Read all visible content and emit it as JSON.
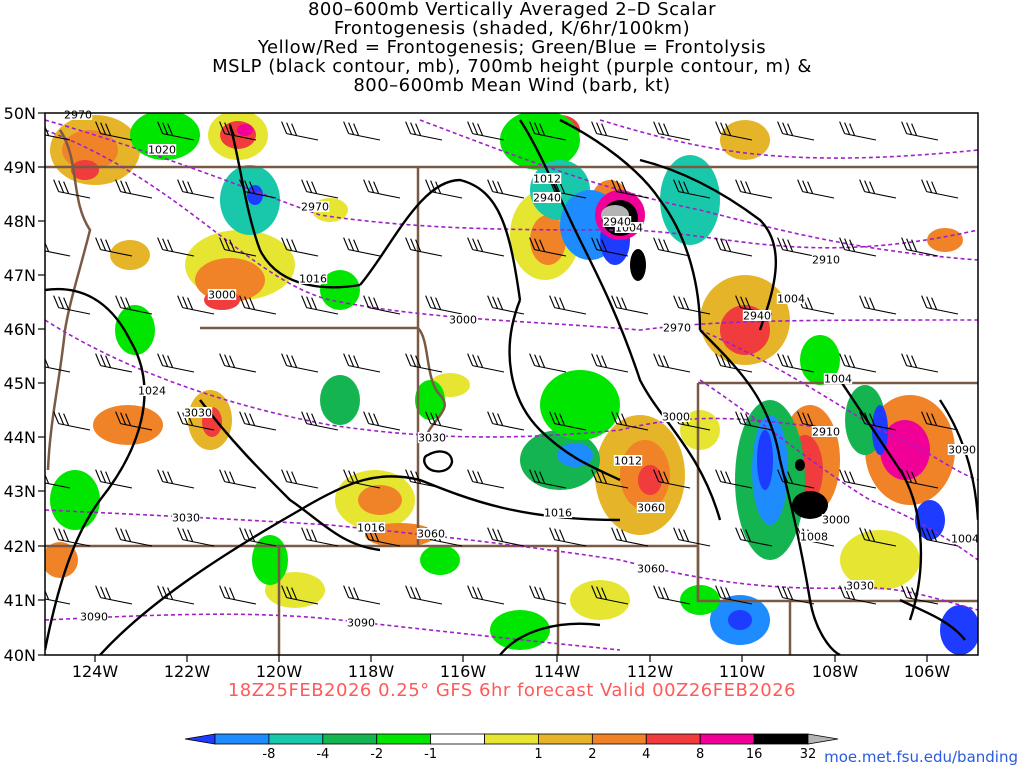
{
  "title": {
    "lines": [
      "800–600mb Vertically Averaged 2–D Scalar",
      "Frontogenesis (shaded, K/6hr/100km)",
      "Yellow/Red = Frontogenesis;  Green/Blue = Frontolysis",
      "MSLP (black contour, mb), 700mb height (purple contour, m) &",
      "800–600mb Mean Wind (barb, kt)"
    ]
  },
  "map": {
    "lat_labels": [
      "50N",
      "49N",
      "48N",
      "47N",
      "46N",
      "45N",
      "44N",
      "43N",
      "42N",
      "41N",
      "40N"
    ],
    "lon_labels": [
      "124W",
      "122W",
      "120W",
      "118W",
      "116W",
      "114W",
      "112W",
      "110W",
      "108W",
      "106W"
    ],
    "mslp_labels": [
      "1020",
      "1016",
      "1024",
      "1016",
      "1012",
      "1016",
      "1012",
      "1004",
      "1004",
      "1004",
      "1008",
      "1004"
    ],
    "height_labels": [
      "2970",
      "2970",
      "3000",
      "3000",
      "3030",
      "3030",
      "3030",
      "3060",
      "3060",
      "3090",
      "3090",
      "2940",
      "2970",
      "2940",
      "2910",
      "2970",
      "3000",
      "3000",
      "3030",
      "2910",
      "2940",
      "3060",
      "3090"
    ],
    "colors": {
      "mslp": "#000000",
      "height": "#a020c8",
      "border": "#7a5a44",
      "barb": "#000000"
    }
  },
  "colorbar": {
    "tick_labels": [
      "-8",
      "-4",
      "-2",
      "-1",
      "1",
      "2",
      "4",
      "8",
      "16",
      "32"
    ],
    "colors": [
      "#1e3cff",
      "#1e8cff",
      "#19c8aa",
      "#14b450",
      "#00e600",
      "#ffffff",
      "#e6e632",
      "#e6b428",
      "#f08228",
      "#f03c3c",
      "#f00096",
      "#000000",
      "#b4b4b4"
    ]
  },
  "footer": {
    "valid_text": "18Z25FEB2026 0.25° GFS 6hr forecast Valid 00Z26FEB2026",
    "credit": "moe.met.fsu.edu/banding"
  }
}
